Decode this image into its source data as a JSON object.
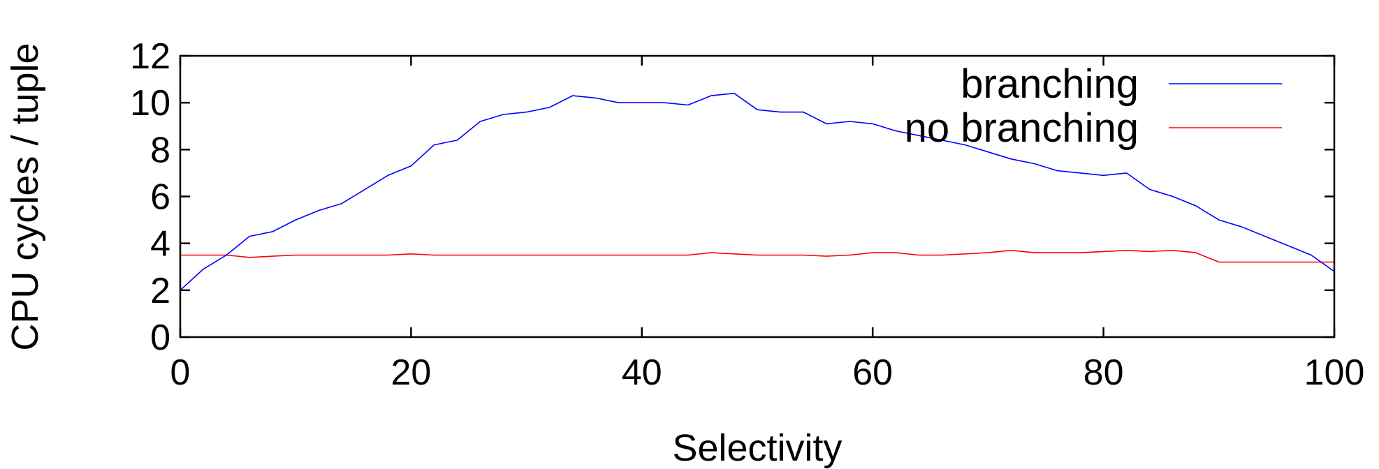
{
  "chart_data": {
    "type": "line",
    "title": "",
    "xlabel": "Selectivity",
    "ylabel": "CPU cycles / tuple",
    "xlim": [
      0,
      100
    ],
    "ylim": [
      0,
      12
    ],
    "x_ticks": [
      0,
      20,
      40,
      60,
      80,
      100
    ],
    "y_ticks": [
      0,
      2,
      4,
      6,
      8,
      10,
      12
    ],
    "grid": false,
    "legend_position": "top-right",
    "x": [
      0,
      2,
      4,
      6,
      8,
      10,
      12,
      14,
      16,
      18,
      20,
      22,
      24,
      26,
      28,
      30,
      32,
      34,
      36,
      38,
      40,
      42,
      44,
      46,
      48,
      50,
      52,
      54,
      56,
      58,
      60,
      62,
      64,
      66,
      68,
      70,
      72,
      74,
      76,
      78,
      80,
      82,
      84,
      86,
      88,
      90,
      92,
      94,
      96,
      98,
      100
    ],
    "series": [
      {
        "name": "branching",
        "color": "#0000ff",
        "values": [
          2.0,
          2.9,
          3.5,
          4.3,
          4.5,
          5.0,
          5.4,
          5.7,
          6.3,
          6.9,
          7.3,
          8.2,
          8.4,
          9.2,
          9.5,
          9.6,
          9.8,
          10.3,
          10.2,
          10.0,
          10.0,
          10.0,
          9.9,
          10.3,
          10.4,
          9.7,
          9.6,
          9.6,
          9.1,
          9.2,
          9.1,
          8.8,
          8.6,
          8.4,
          8.2,
          7.9,
          7.6,
          7.4,
          7.1,
          7.0,
          6.9,
          7.0,
          6.3,
          6.0,
          5.6,
          5.0,
          4.7,
          4.3,
          3.9,
          3.5,
          2.8
        ]
      },
      {
        "name": "no branching",
        "color": "#ff0000",
        "values": [
          3.5,
          3.5,
          3.5,
          3.4,
          3.45,
          3.5,
          3.5,
          3.5,
          3.5,
          3.5,
          3.55,
          3.5,
          3.5,
          3.5,
          3.5,
          3.5,
          3.5,
          3.5,
          3.5,
          3.5,
          3.5,
          3.5,
          3.5,
          3.6,
          3.55,
          3.5,
          3.5,
          3.5,
          3.45,
          3.5,
          3.6,
          3.6,
          3.5,
          3.5,
          3.55,
          3.6,
          3.7,
          3.6,
          3.6,
          3.6,
          3.65,
          3.7,
          3.65,
          3.7,
          3.6,
          3.2,
          3.2,
          3.2,
          3.2,
          3.2,
          3.2
        ]
      }
    ]
  }
}
